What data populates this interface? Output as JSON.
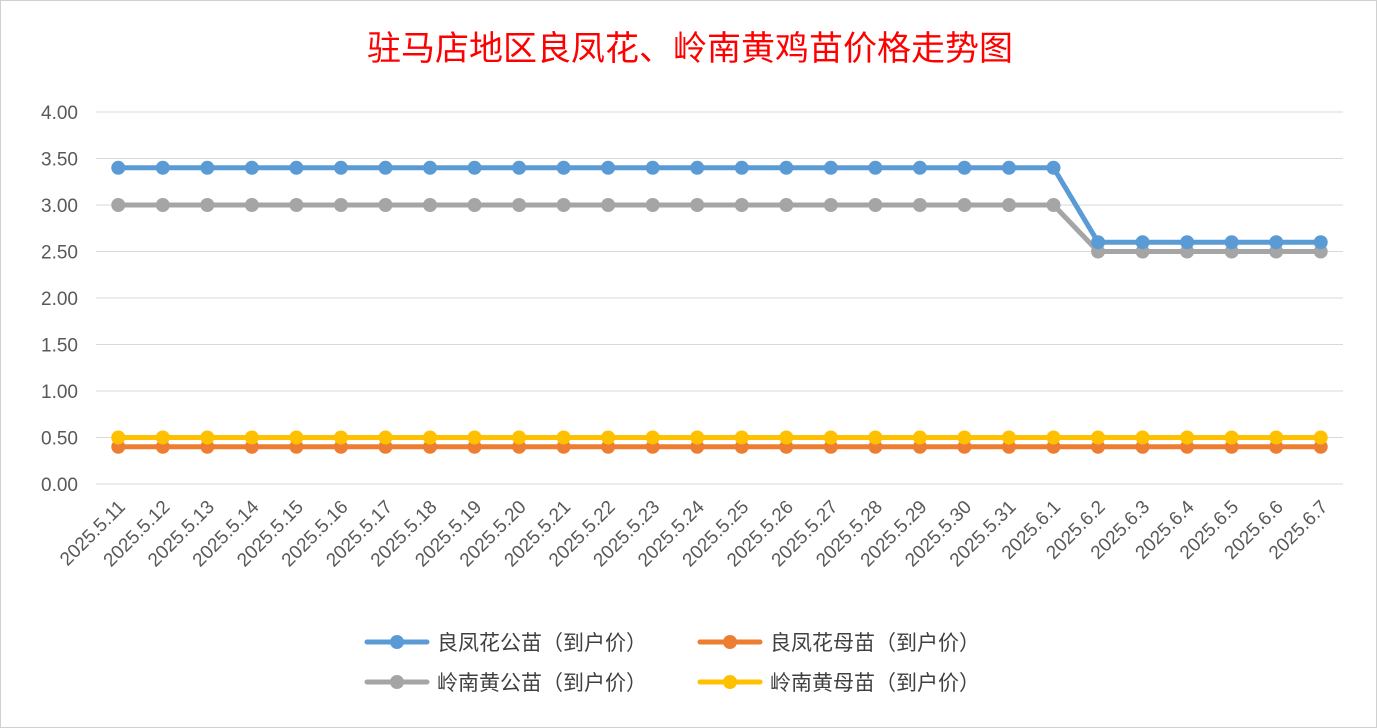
{
  "chart_data": {
    "type": "line",
    "title": "驻马店地区良凤花、岭南黄鸡苗价格走势图",
    "xlabel": "",
    "ylabel": "",
    "ylim": [
      0,
      4
    ],
    "yticks": [
      "0.00",
      "0.50",
      "1.00",
      "1.50",
      "2.00",
      "2.50",
      "3.00",
      "3.50",
      "4.00"
    ],
    "grid": true,
    "legend_position": "bottom",
    "categories": [
      "2025.5.11",
      "2025.5.12",
      "2025.5.13",
      "2025.5.14",
      "2025.5.15",
      "2025.5.16",
      "2025.5.17",
      "2025.5.18",
      "2025.5.19",
      "2025.5.20",
      "2025.5.21",
      "2025.5.22",
      "2025.5.23",
      "2025.5.24",
      "2025.5.25",
      "2025.5.26",
      "2025.5.27",
      "2025.5.28",
      "2025.5.29",
      "2025.5.30",
      "2025.5.31",
      "2025.6.1",
      "2025.6.2",
      "2025.6.3",
      "2025.6.4",
      "2025.6.5",
      "2025.6.6",
      "2025.6.7"
    ],
    "series": [
      {
        "name": "良凤花公苗（到户价）",
        "color": "#5b9bd5",
        "values": [
          3.4,
          3.4,
          3.4,
          3.4,
          3.4,
          3.4,
          3.4,
          3.4,
          3.4,
          3.4,
          3.4,
          3.4,
          3.4,
          3.4,
          3.4,
          3.4,
          3.4,
          3.4,
          3.4,
          3.4,
          3.4,
          3.4,
          2.6,
          2.6,
          2.6,
          2.6,
          2.6,
          2.6
        ]
      },
      {
        "name": "良凤花母苗（到户价）",
        "color": "#ed7d31",
        "values": [
          0.4,
          0.4,
          0.4,
          0.4,
          0.4,
          0.4,
          0.4,
          0.4,
          0.4,
          0.4,
          0.4,
          0.4,
          0.4,
          0.4,
          0.4,
          0.4,
          0.4,
          0.4,
          0.4,
          0.4,
          0.4,
          0.4,
          0.4,
          0.4,
          0.4,
          0.4,
          0.4,
          0.4
        ]
      },
      {
        "name": "岭南黄公苗（到户价）",
        "color": "#a5a5a5",
        "values": [
          3.0,
          3.0,
          3.0,
          3.0,
          3.0,
          3.0,
          3.0,
          3.0,
          3.0,
          3.0,
          3.0,
          3.0,
          3.0,
          3.0,
          3.0,
          3.0,
          3.0,
          3.0,
          3.0,
          3.0,
          3.0,
          3.0,
          2.5,
          2.5,
          2.5,
          2.5,
          2.5,
          2.5
        ]
      },
      {
        "name": "岭南黄母苗（到户价）",
        "color": "#ffc000",
        "values": [
          0.5,
          0.5,
          0.5,
          0.5,
          0.5,
          0.5,
          0.5,
          0.5,
          0.5,
          0.5,
          0.5,
          0.5,
          0.5,
          0.5,
          0.5,
          0.5,
          0.5,
          0.5,
          0.5,
          0.5,
          0.5,
          0.5,
          0.5,
          0.5,
          0.5,
          0.5,
          0.5,
          0.5
        ]
      }
    ]
  }
}
